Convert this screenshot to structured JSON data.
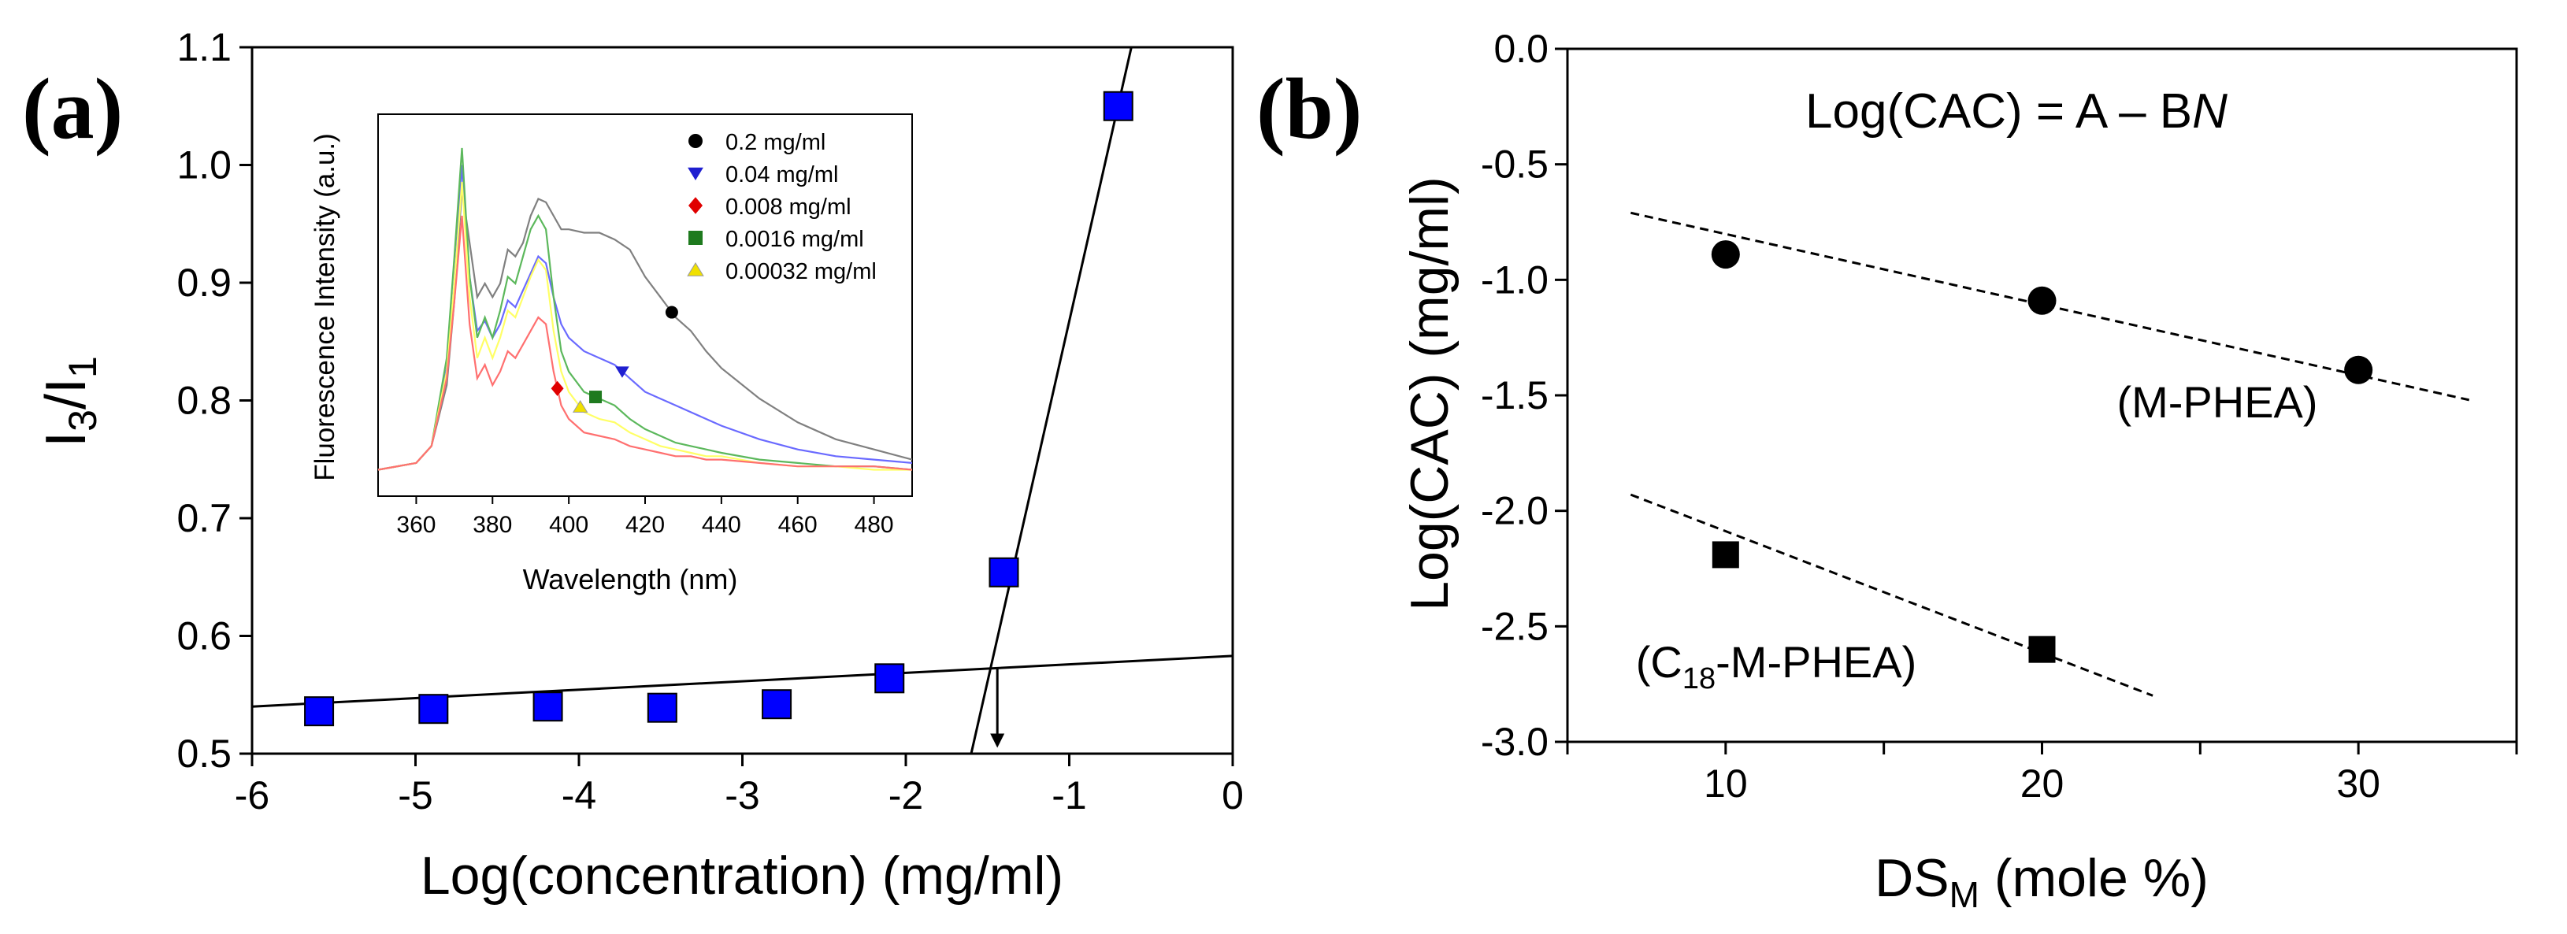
{
  "panels": {
    "a": {
      "label": "(a)"
    },
    "b": {
      "label": "(b)"
    }
  },
  "chart_data": [
    {
      "id": "main-a",
      "type": "scatter",
      "xlabel": "Log(concentration) (mg/ml)",
      "ylabel": {
        "base": "I",
        "sub1": "3",
        "mid": "/I",
        "sub2": "1"
      },
      "xlim": [
        -6,
        0
      ],
      "ylim": [
        0.5,
        1.1
      ],
      "xticks": [
        "-6",
        "-5",
        "-4",
        "-3",
        "-2",
        "-1",
        "0"
      ],
      "yticks": [
        "0.5",
        "0.6",
        "0.7",
        "0.8",
        "0.9",
        "1.0",
        "1.1"
      ],
      "grid": false,
      "marker_color": "#0000ff",
      "series": [
        {
          "x": [
            -5.59,
            -4.89,
            -4.19,
            -3.49,
            -2.79,
            -2.1,
            -1.4,
            -0.7
          ],
          "y": [
            0.536,
            0.538,
            0.54,
            0.539,
            0.542,
            0.564,
            0.654,
            1.05
          ]
        }
      ],
      "fit_lines": [
        {
          "x": [
            -6.0,
            0.0
          ],
          "y": [
            0.54,
            0.583
          ]
        },
        {
          "x": [
            -1.6,
            -0.62
          ],
          "y": [
            0.5,
            1.1
          ]
        }
      ],
      "annotation_arrow": {
        "x": -1.44,
        "y_from": 0.573,
        "y_to": 0.505
      }
    },
    {
      "id": "inset-a",
      "type": "line",
      "xlabel": "Wavelength (nm)",
      "ylabel": "Fluorescence Intensity (a.u.)",
      "xlim": [
        350,
        490
      ],
      "xticks": [
        "360",
        "380",
        "400",
        "420",
        "440",
        "460",
        "480"
      ],
      "series": [
        {
          "name": "0.2 mg/ml",
          "color": "#808080",
          "marker": "circle",
          "marker_color": "#000000",
          "x": [
            350,
            360,
            364,
            368,
            370,
            372,
            374,
            376,
            378,
            380,
            382,
            384,
            386,
            388,
            390,
            392,
            394,
            396,
            398,
            400,
            404,
            408,
            412,
            416,
            420,
            424,
            428,
            432,
            436,
            440,
            450,
            460,
            470,
            480,
            490
          ],
          "y": [
            0.05,
            0.07,
            0.12,
            0.3,
            0.55,
            0.88,
            0.72,
            0.56,
            0.6,
            0.56,
            0.6,
            0.7,
            0.68,
            0.72,
            0.8,
            0.85,
            0.84,
            0.8,
            0.76,
            0.76,
            0.75,
            0.75,
            0.73,
            0.7,
            0.62,
            0.56,
            0.5,
            0.46,
            0.4,
            0.35,
            0.26,
            0.19,
            0.14,
            0.11,
            0.08
          ],
          "marker_x": 427
        },
        {
          "name": "0.04 mg/ml",
          "color": "#6a6aff",
          "marker": "triangle-down",
          "marker_color": "#1f1fd0",
          "x": [
            350,
            360,
            364,
            368,
            370,
            372,
            374,
            376,
            378,
            380,
            382,
            384,
            386,
            388,
            390,
            392,
            394,
            396,
            398,
            400,
            404,
            408,
            412,
            416,
            420,
            424,
            428,
            432,
            436,
            440,
            450,
            460,
            470,
            480,
            490
          ],
          "y": [
            0.05,
            0.07,
            0.12,
            0.35,
            0.6,
            0.95,
            0.62,
            0.46,
            0.49,
            0.44,
            0.48,
            0.55,
            0.53,
            0.58,
            0.63,
            0.68,
            0.66,
            0.56,
            0.48,
            0.44,
            0.4,
            0.38,
            0.36,
            0.32,
            0.28,
            0.26,
            0.24,
            0.22,
            0.2,
            0.18,
            0.14,
            0.11,
            0.09,
            0.08,
            0.07
          ],
          "marker_x": 414
        },
        {
          "name": "0.008 mg/ml",
          "color": "#ff7070",
          "marker": "diamond",
          "marker_color": "#e00000",
          "x": [
            350,
            360,
            364,
            368,
            370,
            372,
            374,
            376,
            378,
            380,
            382,
            384,
            386,
            388,
            390,
            392,
            394,
            396,
            398,
            400,
            404,
            408,
            412,
            416,
            420,
            424,
            428,
            432,
            436,
            440,
            450,
            460,
            470,
            480,
            490
          ],
          "y": [
            0.05,
            0.07,
            0.12,
            0.32,
            0.55,
            0.8,
            0.48,
            0.32,
            0.36,
            0.3,
            0.34,
            0.4,
            0.38,
            0.42,
            0.46,
            0.5,
            0.48,
            0.34,
            0.24,
            0.2,
            0.16,
            0.15,
            0.14,
            0.12,
            0.11,
            0.1,
            0.09,
            0.09,
            0.08,
            0.08,
            0.07,
            0.06,
            0.06,
            0.06,
            0.05
          ],
          "marker_x": 397
        },
        {
          "name": "0.0016 mg/ml",
          "color": "#5cb85c",
          "marker": "square",
          "marker_color": "#1e7a1e",
          "x": [
            350,
            360,
            364,
            368,
            370,
            372,
            374,
            376,
            378,
            380,
            382,
            384,
            386,
            388,
            390,
            392,
            394,
            396,
            398,
            400,
            404,
            408,
            412,
            416,
            420,
            424,
            428,
            432,
            436,
            440,
            450,
            460,
            470,
            480,
            490
          ],
          "y": [
            0.05,
            0.07,
            0.12,
            0.38,
            0.68,
            1.0,
            0.62,
            0.44,
            0.5,
            0.44,
            0.52,
            0.62,
            0.6,
            0.68,
            0.76,
            0.8,
            0.76,
            0.56,
            0.4,
            0.34,
            0.28,
            0.26,
            0.24,
            0.2,
            0.17,
            0.15,
            0.13,
            0.12,
            0.11,
            0.1,
            0.08,
            0.07,
            0.06,
            0.06,
            0.05
          ],
          "marker_x": 407
        },
        {
          "name": "0.00032 mg/ml",
          "color": "#ffff66",
          "marker": "triangle-up",
          "marker_color": "#f0e000",
          "x": [
            350,
            360,
            364,
            368,
            370,
            372,
            374,
            376,
            378,
            380,
            382,
            384,
            386,
            388,
            390,
            392,
            394,
            396,
            398,
            400,
            404,
            408,
            412,
            416,
            420,
            424,
            428,
            432,
            436,
            440,
            450,
            460,
            470,
            480,
            490
          ],
          "y": [
            0.05,
            0.07,
            0.12,
            0.34,
            0.6,
            0.9,
            0.56,
            0.38,
            0.44,
            0.38,
            0.44,
            0.52,
            0.5,
            0.56,
            0.62,
            0.67,
            0.64,
            0.46,
            0.34,
            0.28,
            0.22,
            0.2,
            0.19,
            0.16,
            0.14,
            0.12,
            0.11,
            0.1,
            0.09,
            0.09,
            0.07,
            0.06,
            0.06,
            0.05,
            0.05
          ],
          "marker_x": 403
        }
      ]
    },
    {
      "id": "main-b",
      "type": "scatter",
      "title": "Log(CAC) = A – BN",
      "title_parts": {
        "text": "Log(CAC) = A – B",
        "italic": "N"
      },
      "xlabel": {
        "base": "DS",
        "sub": "M",
        "rest": " (mole %)"
      },
      "ylabel": "Log(CAC) (mg/ml)",
      "xlim": [
        5,
        35
      ],
      "ylim": [
        -3.0,
        0.0
      ],
      "xticks": [
        "10",
        "20",
        "30"
      ],
      "yticks": [
        "0.0",
        "-0.5",
        "-1.0",
        "-1.5",
        "-2.0",
        "-2.5",
        "-3.0"
      ],
      "grid": false,
      "series": [
        {
          "name": "(M-PHEA)",
          "marker": "circle",
          "color": "#000000",
          "x": [
            10,
            20,
            30
          ],
          "y": [
            -0.89,
            -1.09,
            -1.39
          ],
          "fit": {
            "x": [
              7,
              33.5
            ],
            "y": [
              -0.71,
              -1.52
            ]
          }
        },
        {
          "name": "(C18-M-PHEA)",
          "label_parts": {
            "pre": "(C",
            "sub": "18",
            "post": "-M-PHEA)"
          },
          "marker": "square",
          "color": "#000000",
          "x": [
            10,
            20
          ],
          "y": [
            -2.19,
            -2.6
          ],
          "fit": {
            "x": [
              7,
              23.5
            ],
            "y": [
              -1.93,
              -2.8
            ]
          }
        }
      ]
    }
  ]
}
